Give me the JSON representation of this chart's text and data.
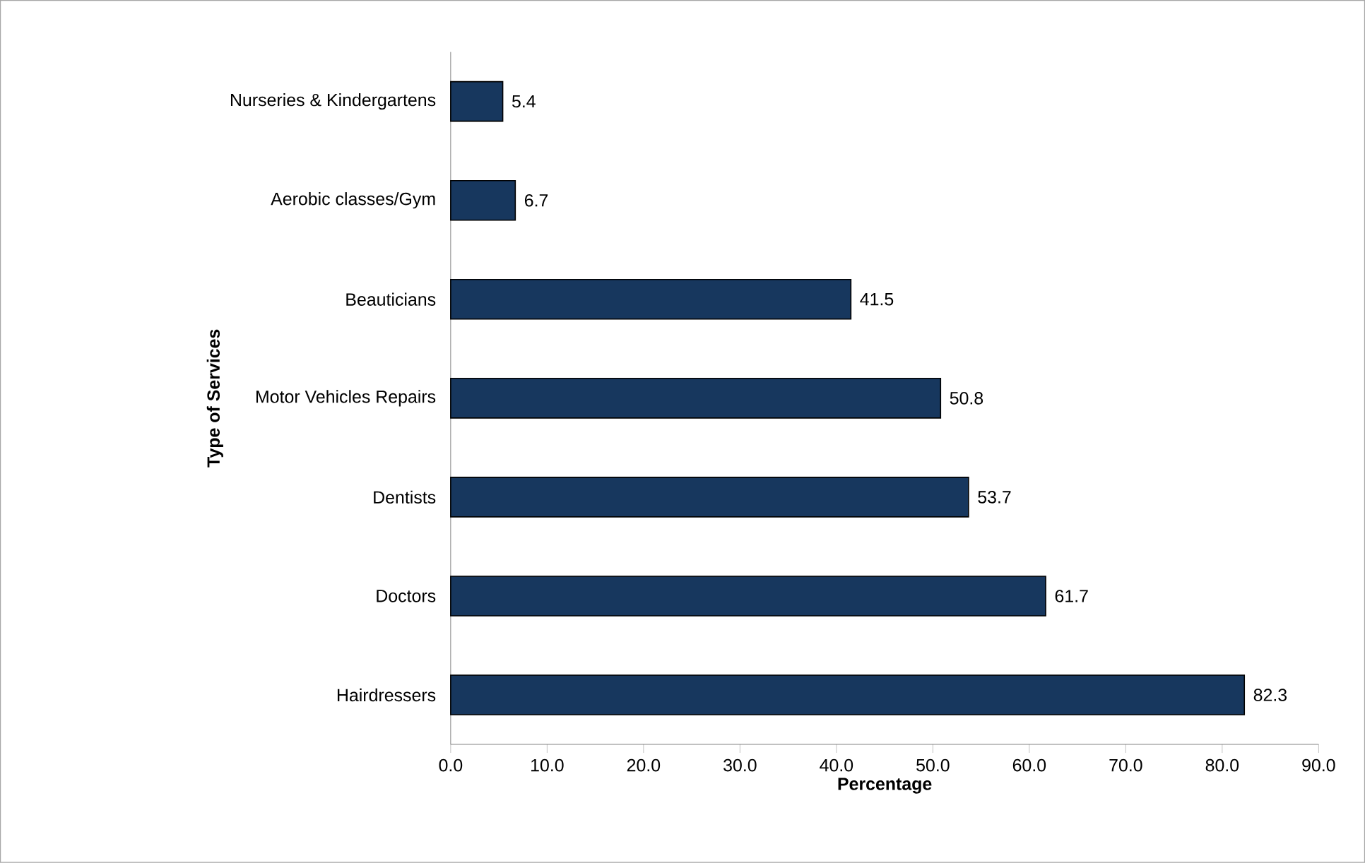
{
  "chart_data": {
    "type": "bar",
    "orientation": "horizontal",
    "xlabel": "Percentage",
    "ylabel": "Type of Services",
    "categories": [
      "Nurseries & Kindergartens",
      "Aerobic classes/Gym",
      "Beauticians",
      "Motor Vehicles Repairs",
      "Dentists",
      "Doctors",
      "Hairdressers"
    ],
    "values": [
      5.4,
      6.7,
      41.5,
      50.8,
      53.7,
      61.7,
      82.3
    ],
    "color": "#17375e",
    "data_labels": true,
    "xlim": [
      0,
      90
    ],
    "xticks": [
      {
        "value": 0,
        "label": "0.0"
      },
      {
        "value": 10,
        "label": "10.0"
      },
      {
        "value": 20,
        "label": "20.0"
      },
      {
        "value": 30,
        "label": "30.0"
      },
      {
        "value": 40,
        "label": "40.0"
      },
      {
        "value": 50,
        "label": "50.0"
      },
      {
        "value": 60,
        "label": "60.0"
      },
      {
        "value": 70,
        "label": "70.0"
      },
      {
        "value": 80,
        "label": "80.0"
      },
      {
        "value": 90,
        "label": "90.0"
      }
    ],
    "grid": false
  }
}
